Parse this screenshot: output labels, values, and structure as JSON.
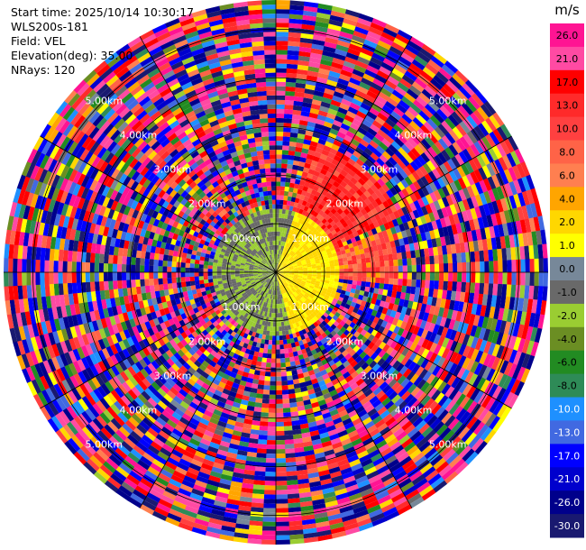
{
  "header": {
    "start_time": "Start time: 2025/10/14 10:30:17",
    "instrument": "WLS200s-181",
    "field": "Field: VEL",
    "elevation": "Elevation(deg): 35.00",
    "nrays": "NRays: 120"
  },
  "chart_data": {
    "type": "heatmap",
    "subtype": "polar-ppi",
    "field": "VEL",
    "units": "m/s",
    "nrays": 120,
    "range_rings_km": [
      1,
      2,
      3,
      4,
      5
    ],
    "ring_labels": [
      "1.00km",
      "2.00km",
      "3.00km",
      "4.00km",
      "5.00km"
    ],
    "colorbar": {
      "title": "m/s",
      "ticks": [
        "26.0",
        "21.0",
        "17.0",
        "13.0",
        "10.0",
        "8.0",
        "6.0",
        "4.0",
        "2.0",
        "1.0",
        "0.0",
        "-1.0",
        "-2.0",
        "-4.0",
        "-6.0",
        "-8.0",
        "-10.0",
        "-13.0",
        "-17.0",
        "-21.0",
        "-26.0",
        "-30.0"
      ],
      "bins": [
        {
          "min": 26,
          "max": 30,
          "color": "#ff1493"
        },
        {
          "min": 21,
          "max": 26,
          "color": "#ff4aa3"
        },
        {
          "min": 17,
          "max": 21,
          "color": "#ff0000"
        },
        {
          "min": 13,
          "max": 17,
          "color": "#ff2a2a"
        },
        {
          "min": 10,
          "max": 13,
          "color": "#ff4040"
        },
        {
          "min": 8,
          "max": 10,
          "color": "#ff6347"
        },
        {
          "min": 6,
          "max": 8,
          "color": "#ff7f50"
        },
        {
          "min": 4,
          "max": 6,
          "color": "#ffa500"
        },
        {
          "min": 2,
          "max": 4,
          "color": "#ffd700"
        },
        {
          "min": 1,
          "max": 2,
          "color": "#ffff00"
        },
        {
          "min": 0,
          "max": 1,
          "color": "#778899"
        },
        {
          "min": -1,
          "max": 0,
          "color": "#696969"
        },
        {
          "min": -2,
          "max": -1,
          "color": "#9acd32"
        },
        {
          "min": -4,
          "max": -2,
          "color": "#6b8e23"
        },
        {
          "min": -6,
          "max": -4,
          "color": "#228b22"
        },
        {
          "min": -8,
          "max": -6,
          "color": "#2e8b57"
        },
        {
          "min": -10,
          "max": -8,
          "color": "#1e90ff"
        },
        {
          "min": -13,
          "max": -10,
          "color": "#4169e1"
        },
        {
          "min": -17,
          "max": -13,
          "color": "#0000ff"
        },
        {
          "min": -21,
          "max": -17,
          "color": "#0000cd"
        },
        {
          "min": -26,
          "max": -21,
          "color": "#00008b"
        },
        {
          "min": -30,
          "max": -26,
          "color": "#191970"
        }
      ]
    },
    "vmin": -30,
    "vmax": 30,
    "grid": true
  }
}
